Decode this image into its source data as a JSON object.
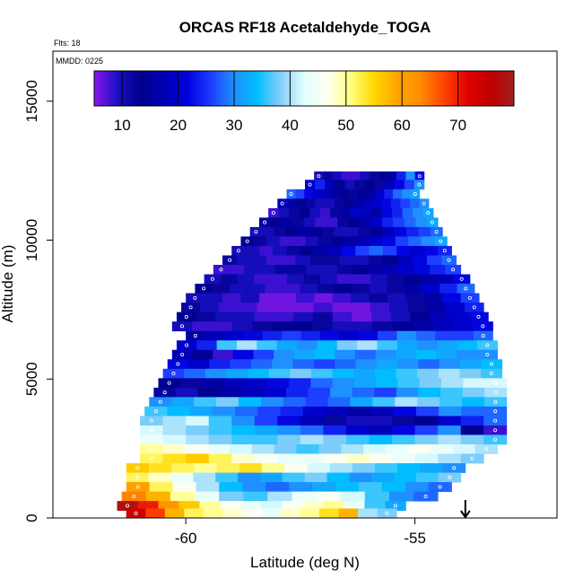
{
  "chart_data": {
    "type": "heatmap",
    "title": "ORCAS RF18 Acetaldehyde_TOGA",
    "flights_label": "Flts: 18",
    "date_label": "MMDD: 0225",
    "xlabel": "Latitude (deg N)",
    "ylabel": "Altitude (m)",
    "xlim": [
      -62.9,
      -51.9
    ],
    "ylim": [
      0,
      16800
    ],
    "x_ticks": [
      {
        "value": -60,
        "label": "-60"
      },
      {
        "value": -55,
        "label": "-55"
      }
    ],
    "y_ticks": [
      {
        "value": 0,
        "label": "0"
      },
      {
        "value": 5000,
        "label": "5000"
      },
      {
        "value": 10000,
        "label": "10000"
      },
      {
        "value": 15000,
        "label": "15000"
      }
    ],
    "colorbar": {
      "range": [
        5,
        80
      ],
      "tick_values": [
        10,
        20,
        30,
        40,
        50,
        60,
        70
      ],
      "tick_labels": [
        "10",
        "20",
        "30",
        "40",
        "50",
        "60",
        "70"
      ],
      "colors": [
        "#8b17e8",
        "#1a0fc6",
        "#00008b",
        "#0000b4",
        "#0000dd",
        "#1e3cff",
        "#1e90ff",
        "#00bfff",
        "#87cefa",
        "#e0ffff",
        "#fffff0",
        "#ffff80",
        "#ffd700",
        "#ffa500",
        "#ff8c00",
        "#ff4500",
        "#e00000",
        "#c00000",
        "#a02020"
      ]
    },
    "arrow_marker_latitude": -53.9,
    "cell_size_deg": 0.28,
    "cell_size_alt_m": 340,
    "rows": [
      {
        "alt": 12300,
        "lat_min": -57.2,
        "lat_max": -54.8,
        "values": [
          10,
          12,
          10,
          8,
          8,
          10,
          12,
          14,
          16,
          24,
          30,
          22
        ]
      },
      {
        "alt": 12000,
        "lat_min": -57.4,
        "lat_max": -54.8,
        "values": [
          20,
          24,
          18,
          14,
          10,
          12,
          14,
          12,
          18,
          22,
          26,
          30
        ]
      },
      {
        "alt": 11660,
        "lat_min": -57.8,
        "lat_max": -54.9,
        "values": [
          28,
          26,
          22,
          20,
          18,
          16,
          14,
          12,
          14,
          16,
          20,
          24,
          28,
          30,
          32
        ]
      },
      {
        "alt": 11320,
        "lat_min": -58.0,
        "lat_max": -54.7,
        "values": [
          18,
          16,
          14,
          12,
          10,
          10,
          12,
          14,
          16,
          18,
          20,
          22,
          24,
          26,
          28,
          30
        ]
      },
      {
        "alt": 10980,
        "lat_min": -58.2,
        "lat_max": -54.6,
        "values": [
          8,
          10,
          12,
          14,
          10,
          8,
          12,
          16,
          20,
          18,
          16,
          22,
          24,
          28,
          30,
          32
        ]
      },
      {
        "alt": 10640,
        "lat_min": -58.4,
        "lat_max": -54.5,
        "values": [
          12,
          14,
          16,
          12,
          10,
          8,
          8,
          12,
          14,
          16,
          20,
          24,
          26,
          28,
          30,
          32
        ]
      },
      {
        "alt": 10300,
        "lat_min": -58.6,
        "lat_max": -54.4,
        "values": [
          10,
          10,
          12,
          14,
          16,
          14,
          12,
          10,
          10,
          12,
          14,
          18,
          22,
          24,
          26,
          28
        ]
      },
      {
        "alt": 9960,
        "lat_min": -58.8,
        "lat_max": -54.3,
        "values": [
          14,
          12,
          10,
          8,
          8,
          10,
          12,
          14,
          16,
          18,
          20,
          22,
          26,
          28,
          30,
          32
        ]
      },
      {
        "alt": 9620,
        "lat_min": -59.0,
        "lat_max": -54.2,
        "values": [
          10,
          10,
          8,
          10,
          12,
          14,
          16,
          18,
          22,
          26,
          28,
          26,
          22,
          20,
          22,
          24
        ]
      },
      {
        "alt": 9280,
        "lat_min": -59.2,
        "lat_max": -54.1,
        "values": [
          12,
          10,
          10,
          8,
          8,
          10,
          12,
          12,
          10,
          10,
          12,
          14,
          18,
          22,
          26,
          28
        ]
      },
      {
        "alt": 8940,
        "lat_min": -59.4,
        "lat_max": -54.0,
        "values": [
          8,
          8,
          10,
          10,
          12,
          12,
          10,
          10,
          12,
          14,
          16,
          18,
          20,
          22,
          24,
          26
        ]
      },
      {
        "alt": 8600,
        "lat_min": -59.6,
        "lat_max": -53.8,
        "values": [
          10,
          12,
          10,
          8,
          8,
          10,
          12,
          10,
          8,
          8,
          10,
          12,
          14,
          16,
          18,
          22
        ]
      },
      {
        "alt": 8260,
        "lat_min": -59.8,
        "lat_max": -53.7,
        "values": [
          14,
          12,
          10,
          10,
          8,
          8,
          10,
          12,
          14,
          12,
          10,
          12,
          16,
          20,
          24,
          28
        ]
      },
      {
        "alt": 7920,
        "lat_min": -60.0,
        "lat_max": -53.6,
        "values": [
          10,
          10,
          8,
          10,
          6,
          6,
          8,
          6,
          8,
          10,
          12,
          10,
          12,
          16,
          22,
          26
        ]
      },
      {
        "alt": 7580,
        "lat_min": -60.1,
        "lat_max": -53.5,
        "values": [
          12,
          10,
          8,
          8,
          6,
          6,
          6,
          8,
          6,
          6,
          8,
          10,
          12,
          16,
          20,
          24
        ]
      },
      {
        "alt": 7240,
        "lat_min": -60.2,
        "lat_max": -53.4,
        "values": [
          14,
          12,
          10,
          10,
          8,
          8,
          10,
          12,
          8,
          6,
          8,
          10,
          14,
          18,
          20,
          22
        ]
      },
      {
        "alt": 6900,
        "lat_min": -60.3,
        "lat_max": -53.3,
        "values": [
          10,
          8,
          8,
          10,
          12,
          14,
          14,
          12,
          10,
          10,
          12,
          14,
          16,
          18,
          20,
          22
        ]
      },
      {
        "alt": 6560,
        "lat_min": -60.0,
        "lat_max": -53.3,
        "values": [
          16,
          18,
          20,
          22,
          24,
          26,
          24,
          22,
          20,
          22,
          26,
          30,
          28,
          26,
          26,
          28
        ]
      },
      {
        "alt": 6220,
        "lat_min": -60.2,
        "lat_max": -53.2,
        "values": [
          20,
          24,
          36,
          40,
          36,
          32,
          30,
          34,
          38,
          40,
          36,
          32,
          30,
          32,
          34,
          36
        ]
      },
      {
        "alt": 5880,
        "lat_min": -60.3,
        "lat_max": -53.2,
        "values": [
          18,
          14,
          8,
          22,
          26,
          30,
          32,
          34,
          30,
          28,
          30,
          32,
          34,
          32,
          30,
          30
        ]
      },
      {
        "alt": 5540,
        "lat_min": -60.4,
        "lat_max": -53.1,
        "values": [
          22,
          20,
          24,
          26,
          28,
          30,
          28,
          26,
          28,
          30,
          32,
          30,
          28,
          30,
          32,
          34
        ]
      },
      {
        "alt": 5200,
        "lat_min": -60.5,
        "lat_max": -53.1,
        "values": [
          26,
          28,
          30,
          32,
          34,
          36,
          38,
          36,
          34,
          32,
          34,
          36,
          38,
          40,
          38,
          36
        ]
      },
      {
        "alt": 4860,
        "lat_min": -60.6,
        "lat_max": -53.0,
        "values": [
          14,
          12,
          16,
          18,
          20,
          22,
          24,
          28,
          30,
          32,
          34,
          36,
          38,
          40,
          42,
          42
        ]
      },
      {
        "alt": 4520,
        "lat_min": -60.7,
        "lat_max": -53.0,
        "values": [
          12,
          10,
          14,
          16,
          18,
          20,
          24,
          26,
          30,
          28,
          26,
          30,
          34,
          36,
          38,
          40
        ]
      },
      {
        "alt": 4180,
        "lat_min": -60.8,
        "lat_max": -53.0,
        "values": [
          30,
          32,
          36,
          38,
          34,
          30,
          28,
          26,
          28,
          32,
          36,
          40,
          38,
          36,
          34,
          36
        ]
      },
      {
        "alt": 3840,
        "lat_min": -60.9,
        "lat_max": -53.0,
        "values": [
          36,
          34,
          32,
          30,
          28,
          26,
          24,
          20,
          18,
          16,
          18,
          22,
          26,
          30,
          28,
          28
        ]
      },
      {
        "alt": 3500,
        "lat_min": -61.0,
        "lat_max": -53.0,
        "values": [
          38,
          40,
          42,
          36,
          30,
          26,
          22,
          18,
          12,
          10,
          10,
          12,
          14,
          20,
          24,
          28
        ]
      },
      {
        "alt": 3160,
        "lat_min": -61.0,
        "lat_max": -53.0,
        "values": [
          42,
          40,
          38,
          36,
          34,
          32,
          30,
          28,
          24,
          20,
          18,
          22,
          26,
          30,
          14,
          8
        ]
      },
      {
        "alt": 2820,
        "lat_min": -61.0,
        "lat_max": -53.0,
        "values": [
          44,
          42,
          40,
          38,
          36,
          36,
          38,
          40,
          38,
          36,
          34,
          36,
          38,
          40,
          38,
          36
        ]
      },
      {
        "alt": 2480,
        "lat_min": -61.0,
        "lat_max": -53.2,
        "values": [
          50,
          48,
          46,
          44,
          42,
          40,
          38,
          36,
          38,
          40,
          42,
          44,
          46,
          44,
          42,
          40
        ]
      },
      {
        "alt": 2140,
        "lat_min": -61.0,
        "lat_max": -53.5,
        "values": [
          52,
          54,
          56,
          52,
          48,
          46,
          44,
          44,
          46,
          48,
          46,
          44,
          42,
          40,
          38
        ]
      },
      {
        "alt": 1800,
        "lat_min": -61.3,
        "lat_max": -53.9,
        "values": [
          56,
          54,
          52,
          50,
          52,
          54,
          50,
          46,
          42,
          40,
          38,
          36,
          34,
          32,
          30
        ]
      },
      {
        "alt": 1460,
        "lat_min": -61.3,
        "lat_max": -54.0,
        "values": [
          52,
          48,
          44,
          40,
          36,
          30,
          32,
          36,
          38,
          34,
          30,
          32,
          34,
          36,
          38
        ]
      },
      {
        "alt": 1120,
        "lat_min": -61.3,
        "lat_max": -54.2,
        "values": [
          60,
          52,
          46,
          40,
          34,
          30,
          28,
          30,
          32,
          34,
          36,
          34,
          30,
          28
        ]
      },
      {
        "alt": 780,
        "lat_min": -61.4,
        "lat_max": -54.5,
        "values": [
          64,
          58,
          50,
          44,
          38,
          36,
          40,
          44,
          46,
          42,
          36,
          30,
          28
        ]
      },
      {
        "alt": 440,
        "lat_min": -61.5,
        "lat_max": -55.2,
        "values": [
          78,
          70,
          62,
          56,
          50,
          46,
          44,
          42,
          46,
          48,
          50,
          44,
          36,
          32
        ]
      },
      {
        "alt": 170,
        "lat_min": -61.3,
        "lat_max": -55.4,
        "values": [
          74,
          68,
          58,
          52,
          50,
          48,
          46,
          44,
          48,
          50,
          54,
          58,
          40,
          38
        ]
      }
    ]
  }
}
